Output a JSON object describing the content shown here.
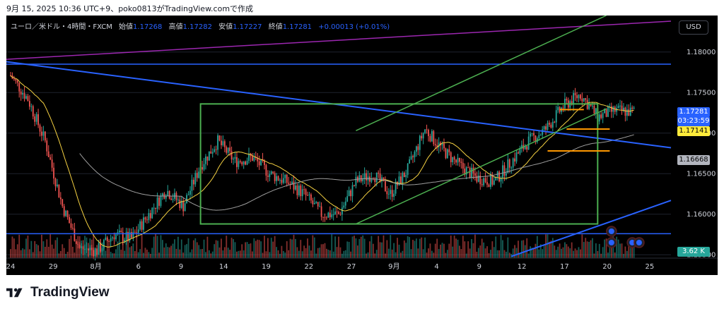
{
  "caption": "9月 15, 2025 10:36 UTC+9、poko0813がTradingView.comで作成",
  "legend": {
    "symbol": "ユーロ／米ドル・4時間・FXCM",
    "open_label": "始値",
    "open": "1.17268",
    "high_label": "高値",
    "high": "1.17282",
    "low_label": "安値",
    "low": "1.17227",
    "close_label": "終値",
    "close": "1.17281",
    "change": "+0.00013 (+0.01%)"
  },
  "currency_button": "USD",
  "price_labels": {
    "last_price": "1.17281",
    "countdown": "03:23:59",
    "orange_level": "1.17141",
    "gray_level": "1.16668",
    "volume": "3.62 K"
  },
  "logo_text": "TradingView",
  "colors": {
    "background": "#000000",
    "up_candle": "#26a69a",
    "down_candle": "#ef5350",
    "trend_blue": "#2962ff",
    "channel_green": "#4caf50",
    "magenta_line": "#9c27b0",
    "orange_level": "#ff9800",
    "ma_yellow": "#f5d142",
    "ma_gray": "#9e9e9e"
  },
  "chart_data": {
    "type": "candlestick",
    "symbol": "EURUSD",
    "timeframe": "4H",
    "xlabels": [
      "24",
      "29",
      "8月",
      "6",
      "9",
      "14",
      "19",
      "22",
      "27",
      "9月",
      "4",
      "9",
      "12",
      "17",
      "20",
      "25"
    ],
    "yticks": [
      "1.18000",
      "1.17500",
      "1.17000",
      "1.16500",
      "1.16000",
      "1.15500"
    ],
    "ylim": [
      1.1545,
      1.1845
    ],
    "close_path": [
      [
        0,
        1.1771
      ],
      [
        10,
        1.1742
      ],
      [
        20,
        1.169
      ],
      [
        30,
        1.161
      ],
      [
        40,
        1.1558
      ],
      [
        50,
        1.1555
      ],
      [
        60,
        1.1575
      ],
      [
        70,
        1.157
      ],
      [
        80,
        1.16
      ],
      [
        90,
        1.163
      ],
      [
        100,
        1.161
      ],
      [
        110,
        1.166
      ],
      [
        120,
        1.169
      ],
      [
        130,
        1.1665
      ],
      [
        140,
        1.167
      ],
      [
        150,
        1.165
      ],
      [
        160,
        1.164
      ],
      [
        170,
        1.1625
      ],
      [
        180,
        1.16
      ],
      [
        190,
        1.16
      ],
      [
        200,
        1.164
      ],
      [
        210,
        1.165
      ],
      [
        220,
        1.1625
      ],
      [
        230,
        1.1655
      ],
      [
        240,
        1.1705
      ],
      [
        250,
        1.168
      ],
      [
        260,
        1.166
      ],
      [
        270,
        1.1645
      ],
      [
        280,
        1.164
      ],
      [
        290,
        1.1665
      ],
      [
        300,
        1.169
      ],
      [
        310,
        1.1705
      ],
      [
        320,
        1.1733
      ],
      [
        330,
        1.1748
      ],
      [
        340,
        1.172
      ],
      [
        350,
        1.1728
      ],
      [
        360,
        1.1726
      ],
      [
        362,
        1.1728
      ]
    ],
    "annotations": {
      "resistance_horizontal": 1.1785,
      "support_horizontal": 1.1576,
      "range_box": {
        "x0": 110,
        "x1": 340,
        "y_top": 1.1736,
        "y_bottom": 1.1588
      },
      "orange_levels": [
        1.1729,
        1.1705,
        1.1678
      ],
      "orange_label_level": 1.17141,
      "gray_label_level": 1.16668
    }
  }
}
